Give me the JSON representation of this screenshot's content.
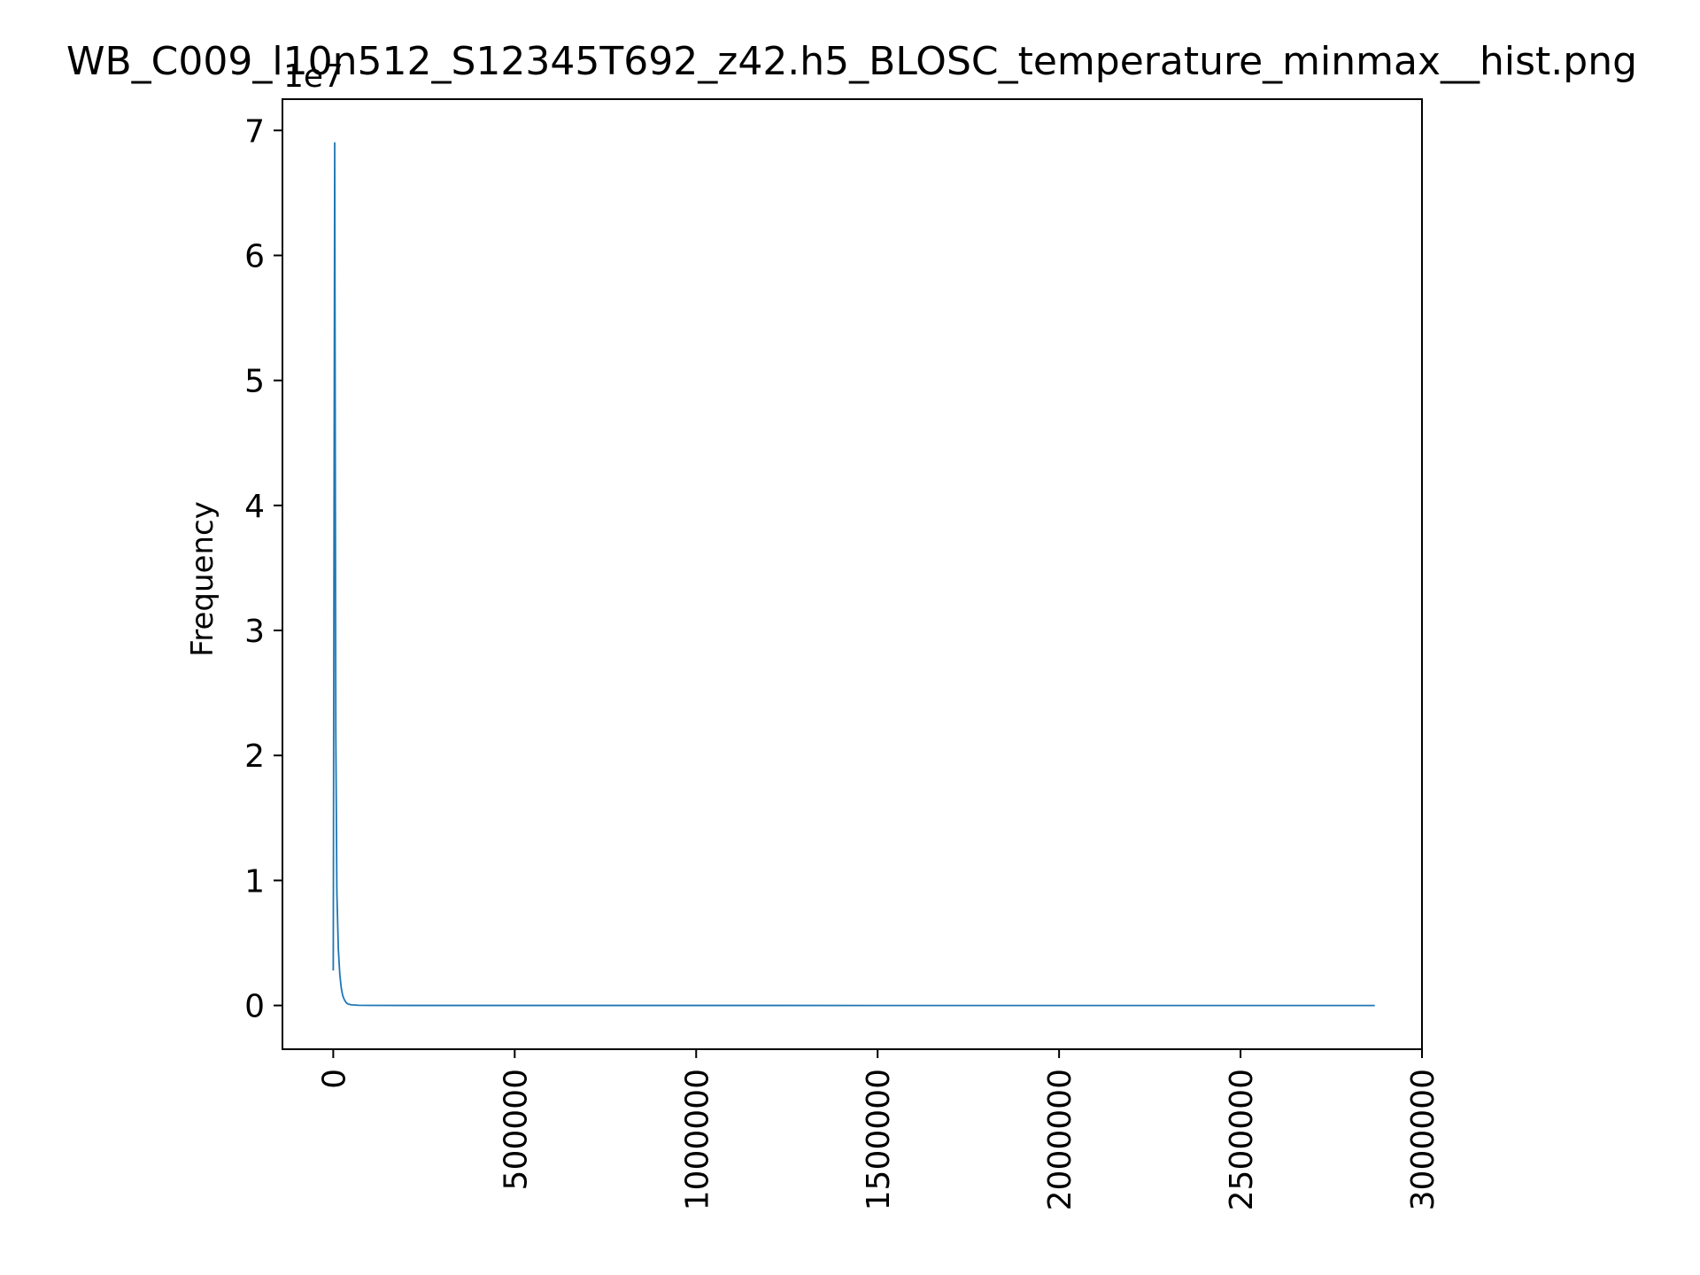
{
  "chart_data": {
    "type": "line",
    "title": "WB_C009_l10n512_S12345T692_z42.h5_BLOSC_temperature_minmax__hist.png",
    "xlabel": "",
    "ylabel": "Frequency",
    "y_scale_label": "1e7",
    "xlim": [
      -140000,
      3000000
    ],
    "ylim": [
      -3500000,
      72500000
    ],
    "x_ticks": [
      0,
      500000,
      1000000,
      1500000,
      2000000,
      2500000,
      3000000
    ],
    "x_tick_labels": [
      "0",
      "500000",
      "1000000",
      "1500000",
      "2000000",
      "2500000",
      "3000000"
    ],
    "y_ticks": [
      0,
      10000000,
      20000000,
      30000000,
      40000000,
      50000000,
      60000000,
      70000000
    ],
    "y_tick_labels": [
      "0",
      "1",
      "2",
      "3",
      "4",
      "5",
      "6",
      "7"
    ],
    "grid": false,
    "legend": "none",
    "series": [
      {
        "color": "#1f77b4",
        "x": [
          0,
          4000,
          7000,
          10000,
          14000,
          18000,
          22000,
          26000,
          30000,
          35000,
          40000,
          50000,
          70000,
          100000,
          200000,
          500000,
          1000000,
          1500000,
          2000000,
          2500000,
          2870000
        ],
        "y": [
          2800000,
          69000000,
          22000000,
          9000000,
          4500000,
          2500000,
          1400000,
          800000,
          500000,
          250000,
          120000,
          50000,
          15000,
          5000,
          1000,
          200,
          50,
          20,
          10,
          5,
          2
        ]
      }
    ]
  }
}
